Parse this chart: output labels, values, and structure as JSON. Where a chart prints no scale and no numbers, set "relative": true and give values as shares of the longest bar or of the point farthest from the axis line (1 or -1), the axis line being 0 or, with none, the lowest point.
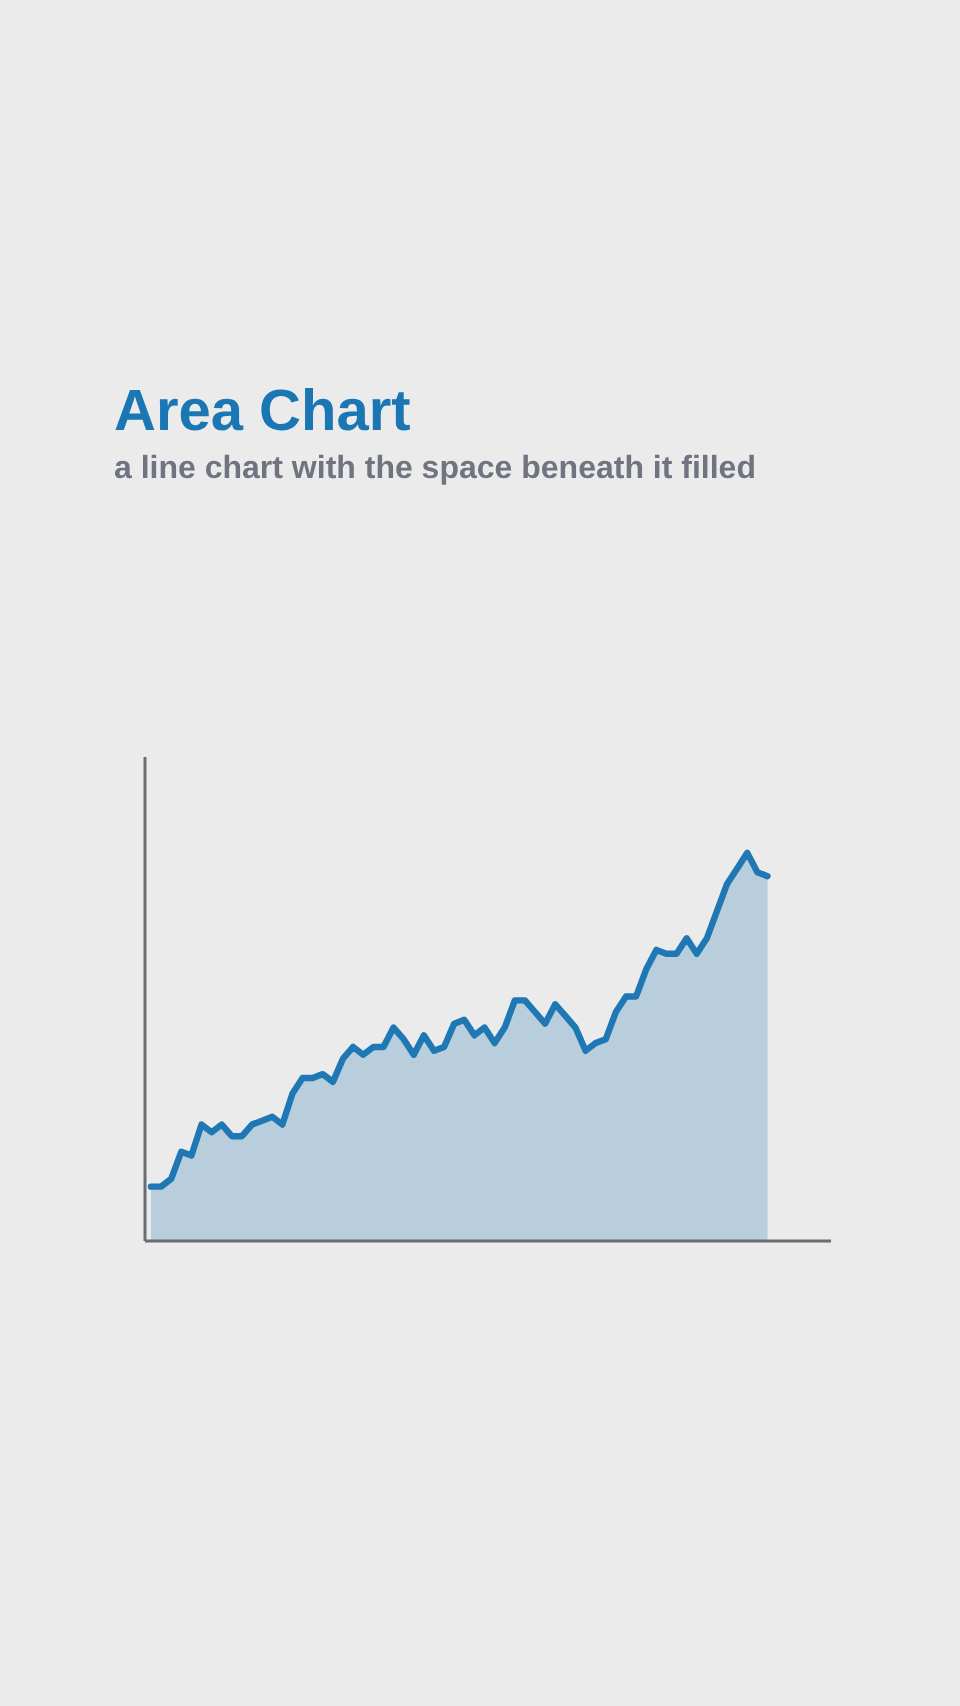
{
  "chart_data": {
    "type": "area",
    "title": "Area Chart",
    "subtitle": "a line chart with the space beneath it filled",
    "relative": true,
    "categories": [
      null,
      null,
      null,
      null,
      null,
      null,
      null,
      null,
      null,
      null,
      null,
      null,
      null,
      null,
      null,
      null,
      null,
      null,
      null,
      null,
      null,
      null,
      null,
      null,
      null,
      null,
      null,
      null,
      null,
      null,
      null,
      null,
      null,
      null,
      null,
      null,
      null,
      null,
      null,
      null,
      null,
      null,
      null,
      null,
      null,
      null,
      null,
      null,
      null,
      null,
      null,
      null,
      null,
      null,
      null,
      null,
      null,
      null,
      null,
      null,
      null,
      null
    ],
    "series": [
      {
        "color": "#1f77b4",
        "values": [
          0.14,
          0.14,
          0.16,
          0.23,
          0.22,
          0.3,
          0.28,
          0.3,
          0.27,
          0.27,
          0.3,
          0.31,
          0.32,
          0.3,
          0.38,
          0.42,
          0.42,
          0.43,
          0.41,
          0.47,
          0.5,
          0.48,
          0.5,
          0.5,
          0.55,
          0.52,
          0.48,
          0.53,
          0.49,
          0.5,
          0.56,
          0.57,
          0.53,
          0.55,
          0.51,
          0.55,
          0.62,
          0.62,
          0.59,
          0.56,
          0.61,
          0.58,
          0.55,
          0.49,
          0.51,
          0.52,
          0.59,
          0.63,
          0.63,
          0.7,
          0.75,
          0.74,
          0.74,
          0.78,
          0.74,
          0.78,
          0.85,
          0.92,
          0.96,
          1.0,
          0.95,
          0.94
        ]
      }
    ]
  }
}
